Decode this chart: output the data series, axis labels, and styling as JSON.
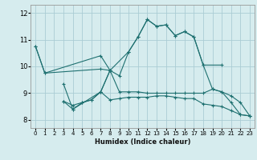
{
  "title": "",
  "xlabel": "Humidex (Indice chaleur)",
  "xlim": [
    -0.5,
    23.5
  ],
  "ylim": [
    7.7,
    12.3
  ],
  "yticks": [
    8,
    9,
    10,
    11,
    12
  ],
  "xticks": [
    0,
    1,
    2,
    3,
    4,
    5,
    6,
    7,
    8,
    9,
    10,
    11,
    12,
    13,
    14,
    15,
    16,
    17,
    18,
    19,
    20,
    21,
    22,
    23
  ],
  "bg_color": "#d6ecee",
  "grid_color": "#aaccd4",
  "line_color": "#1e7070",
  "lines": [
    {
      "x": [
        0,
        1,
        7,
        8,
        9,
        10,
        11,
        12,
        13,
        14,
        15,
        16,
        17,
        18,
        20
      ],
      "y": [
        10.75,
        9.75,
        10.4,
        9.85,
        9.65,
        10.55,
        11.1,
        11.75,
        11.5,
        11.55,
        11.15,
        11.3,
        11.1,
        10.05,
        10.05
      ]
    },
    {
      "x": [
        0,
        1,
        7,
        8,
        10,
        11,
        12,
        13,
        14,
        15,
        16,
        17,
        18,
        19,
        20,
        21,
        22,
        23
      ],
      "y": [
        10.75,
        9.75,
        9.9,
        9.85,
        10.55,
        11.1,
        11.75,
        11.5,
        11.55,
        11.15,
        11.3,
        11.1,
        10.05,
        9.15,
        9.05,
        8.65,
        8.2,
        8.15
      ]
    },
    {
      "x": [
        3,
        4,
        5,
        6,
        7,
        8,
        9,
        10,
        11,
        12,
        13,
        14,
        15,
        16,
        17,
        18,
        19,
        20,
        21,
        22,
        23
      ],
      "y": [
        8.7,
        8.55,
        8.65,
        8.75,
        9.05,
        8.75,
        8.8,
        8.85,
        8.85,
        8.85,
        8.9,
        8.9,
        8.85,
        8.8,
        8.8,
        8.6,
        8.55,
        8.5,
        8.35,
        8.2,
        8.15
      ]
    },
    {
      "x": [
        3,
        4,
        5,
        6,
        7,
        8,
        9,
        10,
        11,
        12,
        13,
        14,
        15,
        16,
        17,
        18,
        19,
        20,
        21,
        22,
        23
      ],
      "y": [
        8.7,
        8.4,
        8.65,
        8.75,
        9.05,
        9.85,
        9.05,
        9.05,
        9.05,
        9.0,
        9.0,
        9.0,
        9.0,
        9.0,
        9.0,
        9.0,
        9.15,
        9.05,
        8.9,
        8.65,
        8.15
      ]
    },
    {
      "x": [
        3,
        4,
        7,
        8
      ],
      "y": [
        9.35,
        8.4,
        9.05,
        9.85
      ]
    }
  ]
}
